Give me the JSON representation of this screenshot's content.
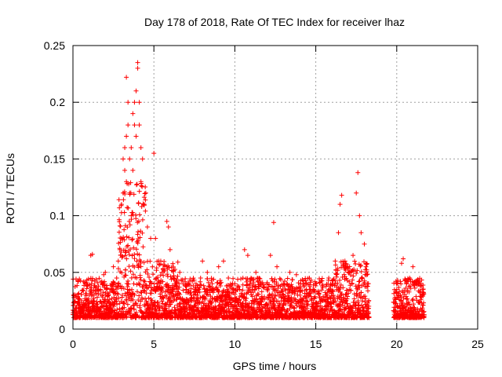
{
  "chart_data": {
    "type": "scatter",
    "title": "Day 178 of 2018, Rate Of TEC Index for receiver lhaz",
    "xlabel": "GPS time / hours",
    "ylabel": "ROTI / TECUs",
    "xlim": [
      0,
      25
    ],
    "ylim": [
      0,
      0.25
    ],
    "xticks": [
      0,
      5,
      10,
      15,
      20,
      25
    ],
    "xtick_labels": [
      "0",
      "5",
      "10",
      "15",
      "20",
      "25"
    ],
    "yticks": [
      0,
      0.05,
      0.1,
      0.15,
      0.2,
      0.25
    ],
    "ytick_labels": [
      "0",
      "0.05",
      "0.1",
      "0.15",
      "0.2",
      "0.25"
    ],
    "grid": true,
    "marker": "plus",
    "color": "#ff0000",
    "data_gap_hours": [
      18.3,
      19.8
    ],
    "points": [
      [
        0.2,
        0.018
      ],
      [
        0.4,
        0.022
      ],
      [
        0.6,
        0.015
      ],
      [
        0.8,
        0.025
      ],
      [
        1.0,
        0.02
      ],
      [
        1.1,
        0.065
      ],
      [
        1.2,
        0.066
      ],
      [
        1.3,
        0.03
      ],
      [
        1.5,
        0.028
      ],
      [
        1.7,
        0.035
      ],
      [
        1.9,
        0.048
      ],
      [
        2.0,
        0.05
      ],
      [
        2.2,
        0.03
      ],
      [
        2.4,
        0.04
      ],
      [
        2.5,
        0.055
      ],
      [
        2.7,
        0.045
      ],
      [
        2.8,
        0.06
      ],
      [
        2.9,
        0.07
      ],
      [
        3.0,
        0.08
      ],
      [
        3.0,
        0.11
      ],
      [
        3.1,
        0.12
      ],
      [
        3.1,
        0.15
      ],
      [
        3.2,
        0.16
      ],
      [
        3.2,
        0.14
      ],
      [
        3.3,
        0.17
      ],
      [
        3.3,
        0.13
      ],
      [
        3.3,
        0.222
      ],
      [
        3.4,
        0.2
      ],
      [
        3.4,
        0.18
      ],
      [
        3.5,
        0.15
      ],
      [
        3.5,
        0.12
      ],
      [
        3.6,
        0.16
      ],
      [
        3.6,
        0.1
      ],
      [
        3.7,
        0.19
      ],
      [
        3.7,
        0.14
      ],
      [
        3.8,
        0.18
      ],
      [
        3.8,
        0.2
      ],
      [
        3.9,
        0.21
      ],
      [
        3.9,
        0.17
      ],
      [
        4.0,
        0.235
      ],
      [
        4.0,
        0.23
      ],
      [
        4.1,
        0.2
      ],
      [
        4.1,
        0.18
      ],
      [
        4.2,
        0.16
      ],
      [
        4.2,
        0.13
      ],
      [
        4.3,
        0.15
      ],
      [
        4.4,
        0.11
      ],
      [
        4.5,
        0.12
      ],
      [
        4.6,
        0.09
      ],
      [
        4.8,
        0.08
      ],
      [
        5.0,
        0.155
      ],
      [
        5.1,
        0.08
      ],
      [
        5.3,
        0.06
      ],
      [
        5.5,
        0.05
      ],
      [
        5.8,
        0.095
      ],
      [
        5.9,
        0.09
      ],
      [
        6.0,
        0.07
      ],
      [
        6.2,
        0.045
      ],
      [
        6.4,
        0.04
      ],
      [
        6.6,
        0.05
      ],
      [
        6.8,
        0.04
      ],
      [
        7.0,
        0.035
      ],
      [
        7.3,
        0.03
      ],
      [
        7.6,
        0.04
      ],
      [
        8.0,
        0.06
      ],
      [
        8.3,
        0.05
      ],
      [
        8.6,
        0.04
      ],
      [
        9.0,
        0.055
      ],
      [
        9.3,
        0.06
      ],
      [
        9.6,
        0.045
      ],
      [
        10.0,
        0.04
      ],
      [
        10.3,
        0.035
      ],
      [
        10.6,
        0.07
      ],
      [
        10.8,
        0.065
      ],
      [
        11.0,
        0.045
      ],
      [
        11.3,
        0.05
      ],
      [
        11.6,
        0.04
      ],
      [
        12.0,
        0.035
      ],
      [
        12.2,
        0.065
      ],
      [
        12.4,
        0.094
      ],
      [
        12.6,
        0.055
      ],
      [
        13.0,
        0.04
      ],
      [
        13.4,
        0.05
      ],
      [
        13.8,
        0.048
      ],
      [
        14.2,
        0.04
      ],
      [
        14.6,
        0.045
      ],
      [
        15.0,
        0.04
      ],
      [
        15.4,
        0.038
      ],
      [
        15.8,
        0.045
      ],
      [
        16.2,
        0.06
      ],
      [
        16.4,
        0.085
      ],
      [
        16.5,
        0.11
      ],
      [
        16.6,
        0.118
      ],
      [
        16.8,
        0.06
      ],
      [
        17.0,
        0.05
      ],
      [
        17.3,
        0.065
      ],
      [
        17.5,
        0.12
      ],
      [
        17.6,
        0.138
      ],
      [
        17.7,
        0.1
      ],
      [
        17.8,
        0.085
      ],
      [
        18.0,
        0.075
      ],
      [
        18.1,
        0.055
      ],
      [
        18.2,
        0.04
      ],
      [
        20.0,
        0.035
      ],
      [
        20.1,
        0.03
      ],
      [
        20.3,
        0.058
      ],
      [
        20.4,
        0.062
      ],
      [
        20.6,
        0.04
      ],
      [
        20.8,
        0.045
      ],
      [
        21.0,
        0.055
      ],
      [
        21.2,
        0.04
      ],
      [
        21.4,
        0.042
      ],
      [
        21.6,
        0.035
      ]
    ]
  }
}
